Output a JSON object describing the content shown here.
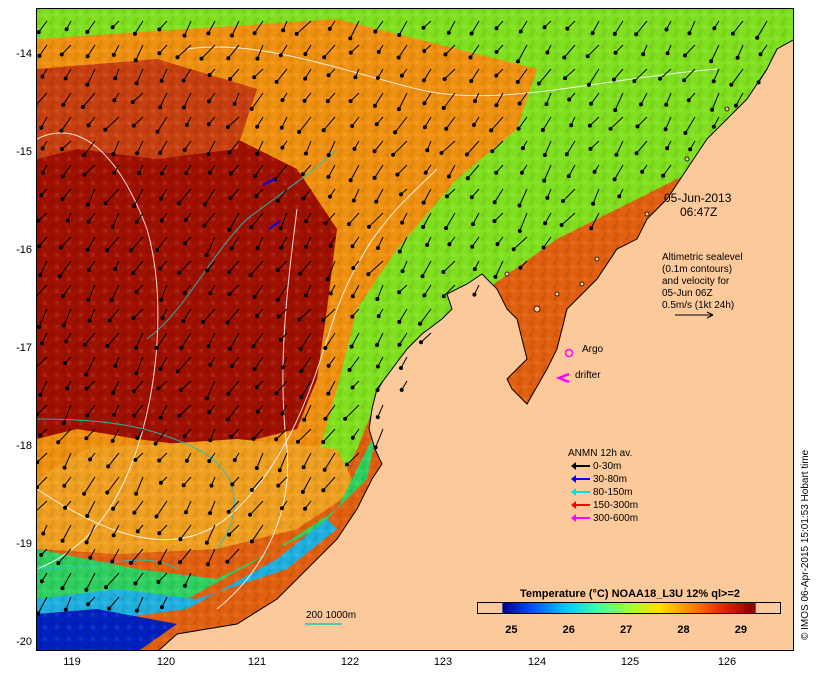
{
  "map": {
    "date_line1": "05-Jun-2013",
    "date_line2": "06:47Z",
    "altimetry_lines": [
      "Altimetric sealevel",
      "(0.1m contours)",
      "and velocity for",
      "05-Jun 06Z",
      "0.5m/s (1kt 24h)"
    ],
    "argo_label": "Argo",
    "drifter_label": "drifter",
    "anmn_title": "ANMN 12h av.",
    "anmn_items": [
      {
        "label": "0-30m",
        "color": "#000000"
      },
      {
        "label": "30-80m",
        "color": "#0000ff"
      },
      {
        "label": "80-150m",
        "color": "#00e0e0"
      },
      {
        "label": "150-300m",
        "color": "#ff0000"
      },
      {
        "label": "300-600m",
        "color": "#ff00ff"
      }
    ],
    "depth_legend": "200  1000m",
    "colorbar_title": "Temperature (°C) NOAA18_L3U 12% ql>=2",
    "colorbar_ticks": [
      "25",
      "26",
      "27",
      "28",
      "29"
    ],
    "colorbar_range": [
      24.4,
      29.7
    ],
    "credit": "© IMOS 06-Apr-2015 15:01:53 Hobart time",
    "lat_ticks": [
      "-14",
      "-15",
      "-16",
      "-17",
      "-18",
      "-19",
      "-20"
    ],
    "lon_ticks": [
      "119",
      "120",
      "121",
      "122",
      "123",
      "124",
      "125",
      "126"
    ],
    "colors": {
      "land": "#fcc99b",
      "argo": "#ff00ff",
      "drifter": "#ff00ff"
    }
  }
}
